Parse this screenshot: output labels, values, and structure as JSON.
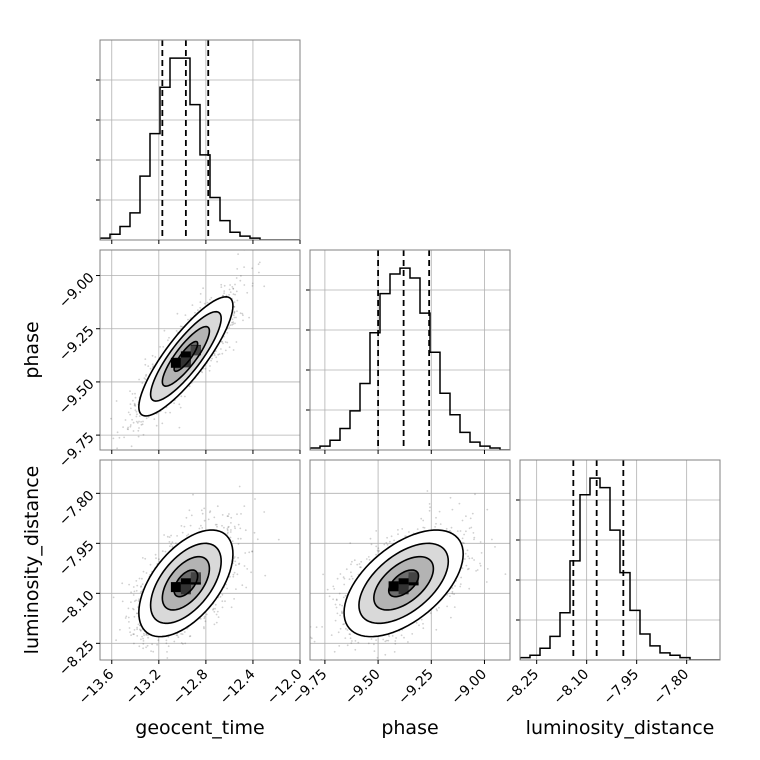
{
  "chart_data": {
    "type": "corner",
    "parameters": [
      {
        "name": "geocent_time",
        "axis_label": "geocent_time",
        "range": [
          -13.7,
          -12.0
        ],
        "ticks": [
          -13.6,
          -13.2,
          -12.8,
          -12.4,
          -12.0
        ],
        "tick_labels": [
          "−13.6",
          "−13.2",
          "−12.8",
          "−12.4",
          "−12.0"
        ],
        "quantiles": [
          -13.17,
          -12.97,
          -12.78
        ],
        "histogram": {
          "bin_edges": [
            -13.7,
            -13.615,
            -13.53,
            -13.445,
            -13.36,
            -13.275,
            -13.19,
            -13.105,
            -13.02,
            -12.935,
            -12.85,
            -12.765,
            -12.68,
            -12.595,
            -12.51,
            -12.425,
            -12.34,
            -12.255,
            -12.17,
            -12.085,
            -12.0
          ],
          "counts": [
            1,
            3,
            7,
            14,
            33,
            55,
            79,
            94,
            94,
            70,
            44,
            22,
            10,
            4,
            2,
            1,
            0,
            0,
            0,
            0
          ]
        }
      },
      {
        "name": "phase",
        "axis_label": "phase",
        "range": [
          -9.82,
          -8.88
        ],
        "ticks": [
          -9.75,
          -9.5,
          -9.25,
          -9.0
        ],
        "tick_labels": [
          "−9.75",
          "−9.50",
          "−9.25",
          "−9.00"
        ],
        "quantiles": [
          -9.5,
          -9.38,
          -9.26
        ],
        "histogram": {
          "bin_edges": [
            -9.82,
            -9.773,
            -9.726,
            -9.679,
            -9.632,
            -9.585,
            -9.538,
            -9.491,
            -9.444,
            -9.397,
            -9.35,
            -9.303,
            -9.256,
            -9.209,
            -9.162,
            -9.115,
            -9.068,
            -9.021,
            -8.974,
            -8.927,
            -8.88
          ],
          "counts": [
            1,
            2,
            5,
            11,
            20,
            34,
            60,
            80,
            90,
            93,
            88,
            70,
            50,
            29,
            18,
            9,
            4,
            2,
            1,
            0
          ]
        }
      },
      {
        "name": "luminosity_distance",
        "axis_label": "luminosity_distance",
        "range": [
          -8.3,
          -7.7
        ],
        "ticks": [
          -8.25,
          -8.1,
          -7.95,
          -7.8
        ],
        "tick_labels": [
          "−8.25",
          "−8.10",
          "−7.95",
          "−7.80"
        ],
        "quantiles": [
          -8.14,
          -8.07,
          -7.99
        ],
        "histogram": {
          "bin_edges": [
            -8.3,
            -8.27,
            -8.24,
            -8.21,
            -8.18,
            -8.15,
            -8.12,
            -8.09,
            -8.06,
            -8.03,
            -8.0,
            -7.97,
            -7.94,
            -7.91,
            -7.88,
            -7.85,
            -7.82,
            -7.79,
            -7.76,
            -7.73,
            -7.7
          ],
          "counts": [
            1,
            2,
            5,
            10,
            20,
            42,
            70,
            77,
            73,
            55,
            37,
            21,
            11,
            6,
            3,
            2,
            1,
            0,
            0,
            0
          ]
        }
      }
    ],
    "pairs": [
      {
        "x": "geocent_time",
        "y": "phase",
        "mean": [
          -12.97,
          -9.38
        ],
        "std": [
          0.2,
          0.14
        ],
        "correlation": 0.85,
        "peak": [
          -12.97,
          -9.38
        ],
        "contour_levels_sigma": [
          0.5,
          1.0,
          1.5,
          2.0
        ]
      },
      {
        "x": "geocent_time",
        "y": "luminosity_distance",
        "mean": [
          -12.97,
          -8.07
        ],
        "std": [
          0.2,
          0.08
        ],
        "correlation": 0.55,
        "peak": [
          -12.97,
          -8.07
        ],
        "contour_levels_sigma": [
          0.5,
          1.0,
          1.5,
          2.0
        ]
      },
      {
        "x": "phase",
        "y": "luminosity_distance",
        "mean": [
          -9.38,
          -8.07
        ],
        "std": [
          0.14,
          0.08
        ],
        "correlation": 0.55,
        "peak": [
          -9.38,
          -8.07
        ],
        "contour_levels_sigma": [
          0.5,
          1.0,
          1.5,
          2.0
        ]
      }
    ],
    "grid": true,
    "colors": {
      "line": "#000000",
      "grid": "#b0b0b0",
      "scatter": "#555555",
      "density_light": "#b3b3b3",
      "density_mid": "#6e6e6e",
      "density_dark": "#000000",
      "frame": "#808080"
    }
  }
}
